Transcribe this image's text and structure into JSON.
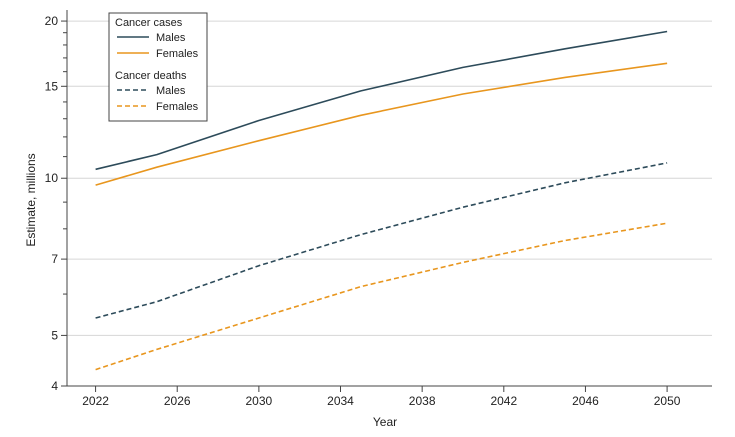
{
  "chart_data": {
    "type": "line",
    "xlabel": "Year",
    "ylabel": "Estimate, millions",
    "y_scale": "log",
    "xlim": [
      2020.6,
      2052.2
    ],
    "ylim": [
      4,
      21
    ],
    "x_ticks": [
      2022,
      2026,
      2030,
      2034,
      2038,
      2042,
      2046,
      2050
    ],
    "y_ticks_labeled": [
      4,
      5,
      7,
      10,
      15,
      20
    ],
    "y_ticks_minor": [
      6,
      8,
      9,
      11,
      12,
      13,
      14,
      16,
      17,
      18,
      19
    ],
    "grid": "horizontal at labeled y ticks",
    "legend": {
      "placement": "top-left",
      "groups": [
        {
          "title": "Cancer cases",
          "entries": [
            "Males",
            "Females"
          ]
        },
        {
          "title": "Cancer deaths",
          "entries": [
            "Males",
            "Females"
          ]
        }
      ]
    },
    "colors": {
      "males": "#2d4b5a",
      "females": "#e8961e"
    },
    "series": [
      {
        "group": "Cancer cases",
        "name": "Males",
        "style": "solid",
        "color": "#2d4b5a",
        "x": [
          2022,
          2025,
          2030,
          2035,
          2040,
          2045,
          2050
        ],
        "y": [
          10.4,
          11.1,
          12.9,
          14.7,
          16.3,
          17.7,
          19.1
        ]
      },
      {
        "group": "Cancer cases",
        "name": "Females",
        "style": "solid",
        "color": "#e8961e",
        "x": [
          2022,
          2025,
          2030,
          2035,
          2040,
          2045,
          2050
        ],
        "y": [
          9.7,
          10.5,
          11.8,
          13.2,
          14.5,
          15.6,
          16.6
        ]
      },
      {
        "group": "Cancer deaths",
        "name": "Males",
        "style": "dashed",
        "color": "#2d4b5a",
        "x": [
          2022,
          2025,
          2030,
          2035,
          2040,
          2045,
          2050
        ],
        "y": [
          5.4,
          5.8,
          6.8,
          7.8,
          8.8,
          9.8,
          10.7
        ]
      },
      {
        "group": "Cancer deaths",
        "name": "Females",
        "style": "dashed",
        "color": "#e8961e",
        "x": [
          2022,
          2025,
          2030,
          2035,
          2040,
          2045,
          2050
        ],
        "y": [
          4.3,
          4.7,
          5.4,
          6.2,
          6.9,
          7.6,
          8.2
        ]
      }
    ]
  }
}
